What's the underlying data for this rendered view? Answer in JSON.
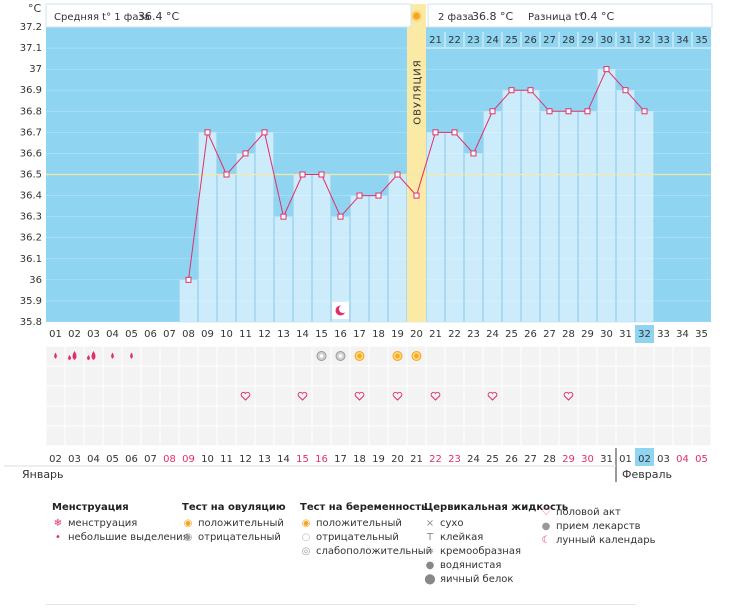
{
  "header": {
    "unit": "°C",
    "phase1_label": "Средняя t° 1 фаза",
    "phase1_value": "36.4 °C",
    "phase2_label": "2 фаза",
    "phase2_value": "36.8 °C",
    "diff_label": "Разница t°",
    "diff_value": "0.4 °C"
  },
  "ovulation_label": "ОВУЛЯЦИЯ",
  "months": {
    "left": "Январь",
    "right": "Февраль"
  },
  "chart_data": {
    "type": "bar",
    "cycle_days": [
      "01",
      "02",
      "03",
      "04",
      "05",
      "06",
      "07",
      "08",
      "09",
      "10",
      "11",
      "12",
      "13",
      "14",
      "15",
      "16",
      "17",
      "18",
      "19",
      "20",
      "21",
      "22",
      "23",
      "24",
      "25",
      "26",
      "27",
      "28",
      "29",
      "30",
      "31",
      "32",
      "33",
      "34",
      "35"
    ],
    "temperatures": [
      null,
      null,
      null,
      null,
      null,
      null,
      null,
      36.0,
      36.7,
      36.5,
      36.6,
      36.7,
      36.3,
      36.5,
      36.5,
      36.3,
      36.4,
      36.4,
      36.5,
      36.4,
      36.7,
      36.7,
      36.6,
      36.8,
      36.9,
      36.9,
      36.8,
      36.8,
      36.8,
      37.0,
      36.9,
      36.8,
      null,
      null,
      null
    ],
    "ylim": [
      35.8,
      37.2
    ],
    "y_ticks": [
      "35.8",
      "35.9",
      "36",
      "36.1",
      "36.2",
      "36.3",
      "36.4",
      "36.5",
      "36.6",
      "36.7",
      "36.8",
      "36.9",
      "37",
      "37.1",
      "37.2"
    ],
    "coverline": 36.5,
    "ovulation_day": 20,
    "current_day": 32,
    "dates": [
      "02",
      "03",
      "04",
      "05",
      "06",
      "07",
      "08",
      "09",
      "10",
      "11",
      "12",
      "13",
      "14",
      "15",
      "16",
      "17",
      "18",
      "19",
      "20",
      "21",
      "22",
      "23",
      "24",
      "25",
      "26",
      "27",
      "28",
      "29",
      "30",
      "31",
      "01",
      "02",
      "03",
      "04",
      "05"
    ],
    "weekend_dates": [
      6,
      7,
      13,
      14,
      20,
      21,
      27,
      28,
      33,
      34
    ],
    "menstruation": {
      "heavy_days": [
        2,
        3
      ],
      "light_days": [
        1,
        4,
        5
      ]
    },
    "ovulation_test_negative_days": [
      15,
      16
    ],
    "ovulation_test_positive_days": [
      17,
      19,
      20
    ],
    "intercourse_days": [
      11,
      14,
      17,
      19,
      21,
      24,
      28
    ],
    "lunar_calendar_day": 16
  },
  "legend": {
    "groups": [
      {
        "title": "Менструация",
        "items": [
          "менструация",
          "небольшие выделения"
        ]
      },
      {
        "title": "Тест на овуляцию",
        "items": [
          "положительный",
          "отрицательный"
        ]
      },
      {
        "title": "Тест на беременность",
        "items": [
          "положительный",
          "отрицательный",
          "слабоположительный"
        ]
      },
      {
        "title": "Цервикальная жидкость",
        "items": [
          "сухо",
          "клейкая",
          "кремообразная",
          "водянистая",
          "яичный белок"
        ]
      },
      {
        "title": "",
        "items": [
          "половой акт",
          "прием лекарств",
          "лунный календарь"
        ]
      }
    ]
  },
  "colors": {
    "sky": "#8fd5f2",
    "bar": "#ccecfb",
    "bar_border": "#a8d8f0",
    "line": "#e0306a",
    "ovulation": "#fbe9a6",
    "coverline": "#f5e9a0",
    "grid_band": "#f3f3f3",
    "weekend": "#e0306a",
    "current": "#8fd5f2"
  }
}
